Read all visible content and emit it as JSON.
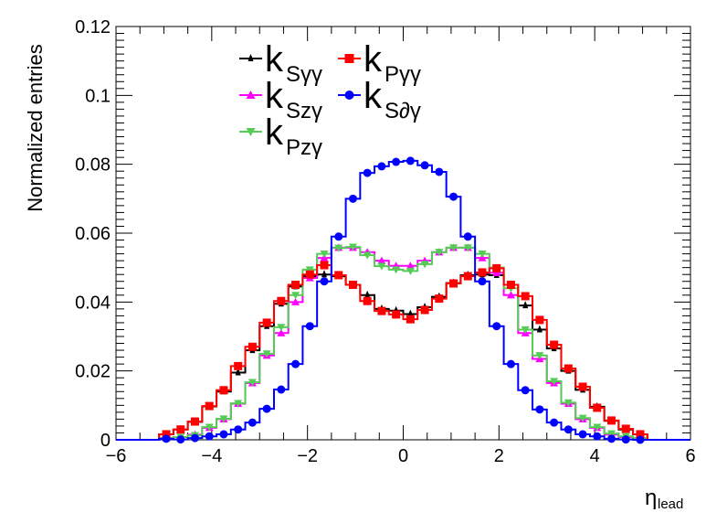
{
  "chart_data": {
    "type": "line",
    "style": "step-histogram",
    "title": "",
    "xlabel": "η",
    "xlabel_sub": "lead",
    "ylabel": "Normalized entries",
    "xlim": [
      -6,
      6
    ],
    "ylim": [
      0,
      0.12
    ],
    "xticks": [
      "−6",
      "−4",
      "−2",
      "0",
      "2",
      "4",
      "6"
    ],
    "xtick_values": [
      -6,
      -4,
      -2,
      0,
      2,
      4,
      6
    ],
    "yticks": [
      "0",
      "0.02",
      "0.04",
      "0.06",
      "0.08",
      "0.1",
      "0.12"
    ],
    "ytick_values": [
      0,
      0.02,
      0.04,
      0.06,
      0.08,
      0.1,
      0.12
    ],
    "grid": false,
    "legend_position": "top-center",
    "bin_low": -5.1,
    "bin_width": 0.3,
    "series": [
      {
        "name": "k",
        "sub": "Sγγ",
        "color": "#000000",
        "marker": "star",
        "values": [
          0.0016,
          0.003,
          0.0052,
          0.0097,
          0.014,
          0.0195,
          0.026,
          0.033,
          0.0395,
          0.0445,
          0.0475,
          0.048,
          0.0475,
          0.045,
          0.042,
          0.038,
          0.0375,
          0.0365,
          0.0385,
          0.0415,
          0.0455,
          0.0478,
          0.048,
          0.0478,
          0.045,
          0.039,
          0.032,
          0.0265,
          0.02,
          0.0145,
          0.0096,
          0.0055,
          0.003,
          0.0016
        ]
      },
      {
        "name": "k",
        "sub": "Szγ",
        "color": "#ff00ff",
        "marker": "triangle-up",
        "values": [
          0.0005,
          0.0008,
          0.0015,
          0.0035,
          0.006,
          0.0105,
          0.0165,
          0.0245,
          0.031,
          0.04,
          0.047,
          0.0528,
          0.0558,
          0.0558,
          0.0545,
          0.052,
          0.0505,
          0.0505,
          0.052,
          0.0545,
          0.0558,
          0.0558,
          0.0528,
          0.0485,
          0.042,
          0.031,
          0.0235,
          0.0165,
          0.0105,
          0.006,
          0.0035,
          0.0015,
          0.0008,
          0.0005
        ]
      },
      {
        "name": "k",
        "sub": "Pzγ",
        "color": "#55cc55",
        "marker": "triangle-down",
        "values": [
          0.0005,
          0.0008,
          0.0013,
          0.0037,
          0.0061,
          0.0106,
          0.0167,
          0.025,
          0.0327,
          0.042,
          0.0494,
          0.054,
          0.0557,
          0.056,
          0.0536,
          0.0504,
          0.0494,
          0.049,
          0.051,
          0.0545,
          0.0558,
          0.0558,
          0.054,
          0.05,
          0.044,
          0.032,
          0.0245,
          0.017,
          0.0108,
          0.0063,
          0.0037,
          0.0018,
          0.001,
          0.0005
        ]
      },
      {
        "name": "k",
        "sub": "Pγγ",
        "color": "#ff0000",
        "marker": "square",
        "values": [
          0.0016,
          0.003,
          0.0053,
          0.0098,
          0.0144,
          0.0214,
          0.027,
          0.034,
          0.0403,
          0.045,
          0.048,
          0.0507,
          0.0478,
          0.045,
          0.0403,
          0.0374,
          0.0364,
          0.035,
          0.0377,
          0.041,
          0.0454,
          0.0475,
          0.0486,
          0.0498,
          0.045,
          0.0417,
          0.0348,
          0.0276,
          0.0207,
          0.0154,
          0.0093,
          0.0056,
          0.0032,
          0.0016
        ]
      },
      {
        "name": "k",
        "sub": "S∂γ",
        "color": "#0000ff",
        "marker": "circle",
        "values": [
          0.0003,
          0.0001,
          0.0005,
          0.001,
          0.0016,
          0.003,
          0.005,
          0.009,
          0.0146,
          0.022,
          0.033,
          0.046,
          0.059,
          0.07,
          0.0775,
          0.0794,
          0.0807,
          0.081,
          0.0797,
          0.0778,
          0.0706,
          0.059,
          0.046,
          0.033,
          0.022,
          0.0144,
          0.0088,
          0.005,
          0.003,
          0.0016,
          0.001,
          0.0003,
          0.0001,
          0.0
        ]
      }
    ]
  }
}
